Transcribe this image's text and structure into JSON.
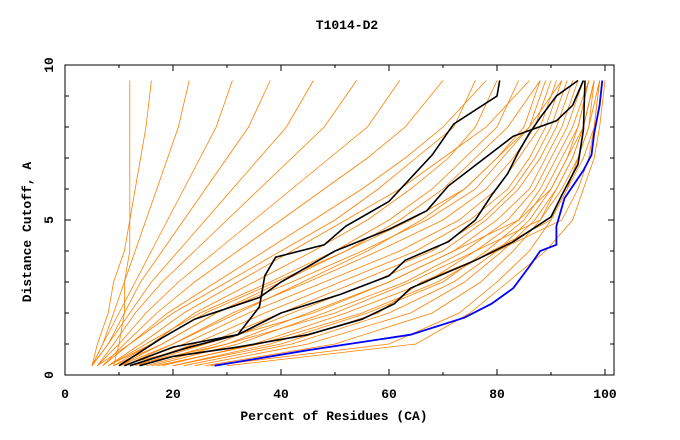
{
  "chart_data": {
    "type": "line",
    "title": "T1014-D2",
    "xlabel": "Percent of Residues (CA)",
    "ylabel": "Distance Cutoff, A",
    "xlim": [
      0,
      100
    ],
    "ylim": [
      0,
      10
    ],
    "x_ticks": [
      "0",
      "20",
      "40",
      "60",
      "80",
      "100"
    ],
    "y_ticks": [
      "0",
      "5",
      "10"
    ],
    "grid": false,
    "legend": "none",
    "colors": {
      "other_models": "#ff8000",
      "highlighted": "#000000",
      "best": "#0000ff"
    },
    "orange_y_levels": [
      0.3,
      1,
      2,
      3,
      4,
      5,
      6,
      7,
      8,
      9.5
    ],
    "orange_series_x": [
      [
        26,
        50,
        68,
        77,
        83,
        88,
        92,
        95,
        97,
        99
      ],
      [
        24,
        45,
        64,
        74,
        81,
        87,
        91,
        94,
        96,
        98
      ],
      [
        22,
        42,
        60,
        72,
        80,
        86,
        90,
        93,
        96,
        98
      ],
      [
        20,
        38,
        56,
        70,
        78,
        85,
        89,
        92,
        95,
        97
      ],
      [
        18,
        35,
        52,
        67,
        76,
        84,
        88,
        91,
        94,
        97
      ],
      [
        16,
        32,
        48,
        63,
        74,
        82,
        87,
        90,
        93,
        96
      ],
      [
        15,
        30,
        45,
        60,
        72,
        80,
        86,
        89,
        92,
        95
      ],
      [
        14,
        28,
        42,
        57,
        70,
        78,
        84,
        88,
        91,
        94
      ],
      [
        13,
        26,
        40,
        54,
        68,
        77,
        83,
        87,
        90,
        93
      ],
      [
        12,
        24,
        37,
        51,
        65,
        75,
        82,
        86,
        89,
        92
      ],
      [
        11,
        22,
        34,
        48,
        62,
        73,
        80,
        84,
        88,
        91
      ],
      [
        10,
        20,
        31,
        45,
        58,
        70,
        78,
        83,
        87,
        90
      ],
      [
        9,
        18,
        28,
        42,
        55,
        67,
        76,
        81,
        86,
        89
      ],
      [
        8,
        16,
        26,
        39,
        52,
        64,
        74,
        80,
        85,
        88
      ],
      [
        27,
        60,
        73,
        80,
        86,
        90,
        93,
        96,
        98,
        99
      ],
      [
        30,
        65,
        75,
        82,
        89,
        94,
        96,
        98,
        99,
        100
      ],
      [
        20,
        40,
        58,
        66,
        80,
        92,
        95,
        97,
        98,
        99
      ],
      [
        17,
        36,
        55,
        69,
        79,
        90,
        93,
        95,
        97,
        98
      ],
      [
        12,
        30,
        50,
        64,
        76,
        88,
        91,
        94,
        96,
        98
      ],
      [
        10,
        26,
        46,
        60,
        72,
        84,
        90,
        93,
        95,
        97
      ],
      [
        8,
        14,
        22,
        32,
        42,
        52,
        62,
        70,
        78,
        86
      ],
      [
        7,
        12,
        19,
        28,
        37,
        46,
        55,
        63,
        70,
        78
      ],
      [
        7,
        11,
        17,
        24,
        32,
        40,
        48,
        56,
        63,
        70
      ],
      [
        6,
        10,
        15,
        21,
        28,
        35,
        42,
        49,
        56,
        62
      ],
      [
        6,
        9,
        13,
        18,
        24,
        30,
        36,
        42,
        48,
        54
      ],
      [
        5,
        8,
        12,
        16,
        21,
        26,
        31,
        36,
        41,
        46
      ],
      [
        5,
        8,
        11,
        14,
        18,
        22,
        26,
        30,
        34,
        38
      ],
      [
        5,
        7,
        10,
        13,
        16,
        19,
        22,
        25,
        28,
        31
      ],
      [
        5,
        7,
        9,
        11,
        13,
        15,
        17,
        19,
        21,
        23
      ],
      [
        5,
        6,
        8,
        9,
        11,
        12,
        13,
        14,
        15,
        16
      ],
      [
        9,
        10,
        11,
        11,
        12,
        12,
        12,
        12,
        12,
        12
      ],
      [
        8,
        15,
        25,
        38,
        50,
        60,
        68,
        74,
        80,
        84
      ],
      [
        9,
        16,
        24,
        35,
        46,
        56,
        64,
        71,
        76,
        80
      ],
      [
        10,
        18,
        28,
        40,
        52,
        62,
        70,
        76,
        82,
        88
      ],
      [
        6,
        12,
        20,
        30,
        40,
        50,
        58,
        65,
        72,
        76
      ],
      [
        11,
        20,
        32,
        44,
        56,
        66,
        74,
        80,
        86,
        92
      ]
    ],
    "black_series": [
      [
        [
          13.8,
          0.3
        ],
        [
          20,
          0.6
        ],
        [
          32,
          0.9
        ],
        [
          45,
          1.3
        ],
        [
          55,
          1.8
        ],
        [
          61,
          2.3
        ],
        [
          64,
          2.8
        ],
        [
          76,
          3.7
        ],
        [
          83,
          4.3
        ],
        [
          90,
          5.1
        ],
        [
          92,
          5.8
        ],
        [
          95,
          6.8
        ],
        [
          96,
          7.9
        ],
        [
          96.3,
          9.5
        ]
      ],
      [
        [
          12,
          0.3
        ],
        [
          23,
          0.9
        ],
        [
          32,
          1.3
        ],
        [
          40,
          2.0
        ],
        [
          51,
          2.6
        ],
        [
          60,
          3.2
        ],
        [
          63,
          3.7
        ],
        [
          71,
          4.3
        ],
        [
          76,
          5
        ],
        [
          79,
          5.8
        ],
        [
          82,
          6.5
        ],
        [
          84,
          7.2
        ],
        [
          86,
          7.8
        ],
        [
          88,
          8.3
        ],
        [
          91,
          9
        ],
        [
          95,
          9.5
        ]
      ],
      [
        [
          10,
          0.3
        ],
        [
          18,
          1.2
        ],
        [
          24,
          1.8
        ],
        [
          36,
          2.5
        ],
        [
          40,
          3.0
        ],
        [
          50,
          4.0
        ],
        [
          60,
          4.7
        ],
        [
          67,
          5.3
        ],
        [
          71,
          6.1
        ],
        [
          77,
          6.9
        ],
        [
          83,
          7.7
        ],
        [
          91,
          8.2
        ],
        [
          94,
          8.7
        ],
        [
          96,
          9.5
        ]
      ],
      [
        [
          11,
          0.3
        ],
        [
          20,
          0.9
        ],
        [
          32,
          1.3
        ],
        [
          36,
          2.2
        ],
        [
          37,
          3.2
        ],
        [
          39,
          3.8
        ],
        [
          48,
          4.2
        ],
        [
          52,
          4.8
        ],
        [
          60,
          5.6
        ],
        [
          68,
          7.1
        ],
        [
          72,
          8.1
        ],
        [
          80,
          9.0
        ],
        [
          80.5,
          9.5
        ]
      ]
    ],
    "blue_series": [
      [
        27.7,
        0.3
      ],
      [
        45,
        0.8
      ],
      [
        64,
        1.3
      ],
      [
        74,
        1.85
      ],
      [
        79,
        2.3
      ],
      [
        83,
        2.8
      ],
      [
        86,
        3.5
      ],
      [
        88,
        4
      ],
      [
        91,
        4.2
      ],
      [
        91,
        4.8
      ],
      [
        92.5,
        5.7
      ],
      [
        96,
        6.6
      ],
      [
        97.5,
        7.1
      ],
      [
        98,
        7.8
      ],
      [
        99,
        8.7
      ],
      [
        99.5,
        9.5
      ]
    ]
  }
}
